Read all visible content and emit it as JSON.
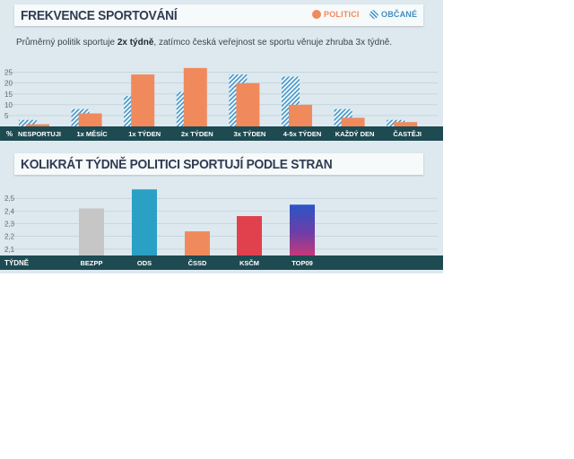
{
  "chart_data": [
    {
      "type": "bar",
      "title": "FREKVENCE SPORTOVÁNÍ",
      "subtitle": {
        "before": "Průměrný politik sportuje ",
        "bold": "2x týdně",
        "after": ", zatímco česká veřejnost se sportu věnuje zhruba 3x týdně."
      },
      "legend": [
        "POLITICI",
        "OBČANÉ"
      ],
      "legend_placement": "top-right",
      "axis_label": "%",
      "categories": [
        "NESPORTUJI",
        "1x MĚSÍC",
        "1x TÝDEN",
        "2x TÝDEN",
        "3x TÝDEN",
        "4-5x TÝDEN",
        "KAŽDÝ DEN",
        "ČASTĚJI"
      ],
      "series": [
        {
          "name": "OBČANÉ",
          "values": [
            3,
            8,
            14,
            16,
            24,
            23,
            8,
            3
          ]
        },
        {
          "name": "POLITICI",
          "values": [
            1,
            6,
            24,
            27,
            20,
            10,
            4,
            2
          ]
        }
      ],
      "y_ticks": [
        5,
        10,
        15,
        20,
        25
      ],
      "ylim": [
        0,
        29
      ],
      "grid": true,
      "colors": {
        "politici": "#f08a5d",
        "obcane": "#4a9acb",
        "axis_band": "#1e4a52"
      }
    },
    {
      "type": "bar",
      "title": "KOLIKRÁT TÝDNĚ POLITICI SPORTUJÍ PODLE STRAN",
      "axis_label": "TÝDNĚ",
      "categories": [
        "BEZPP",
        "ODS",
        "ČSSD",
        "KSČM",
        "TOP09"
      ],
      "values": [
        2.42,
        2.57,
        2.24,
        2.36,
        2.45
      ],
      "y_ticks": [
        "2,1",
        "2,2",
        "2,3",
        "2,4",
        "2,5"
      ],
      "ylim": [
        2.05,
        2.6
      ],
      "grid": true,
      "colors": [
        "#c6c6c6",
        "#2aa0c4",
        "#f08a5d",
        "#e0414d",
        "gradient"
      ]
    }
  ]
}
